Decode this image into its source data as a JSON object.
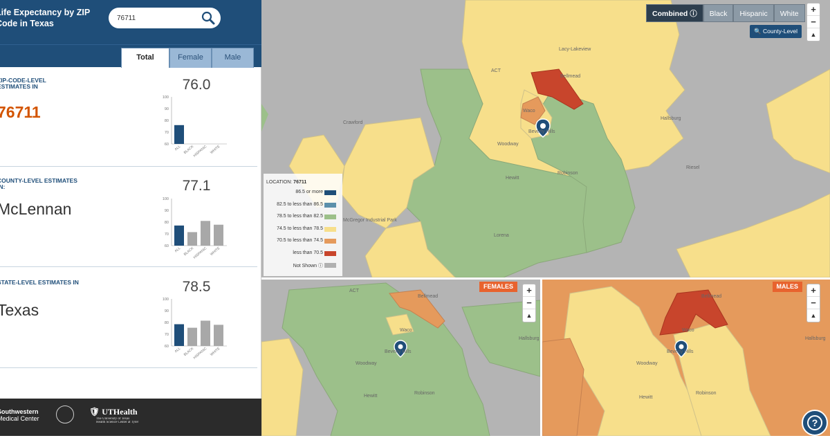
{
  "header": {
    "title": "Life Expectancy by ZIP Code in Texas",
    "search_value": "76711"
  },
  "tabs": [
    {
      "label": "Total"
    },
    {
      "label": "Female"
    },
    {
      "label": "Male"
    }
  ],
  "sections": [
    {
      "label": "ZIP-Code-Level Estimates in",
      "name": "76711",
      "value": "76.0",
      "chart_data": {
        "type": "bar",
        "categories": [
          "ALL",
          "BLACK",
          "HISPANIC",
          "WHITE"
        ],
        "values": [
          76.0,
          null,
          null,
          null
        ],
        "ylim": [
          60,
          100
        ],
        "yticks": [
          60,
          70,
          80,
          90,
          100
        ]
      }
    },
    {
      "label": "County-Level Estimates in:",
      "name": "McLennan",
      "value": "77.1",
      "chart_data": {
        "type": "bar",
        "categories": [
          "ALL",
          "BLACK",
          "HISPANIC",
          "WHITE"
        ],
        "values": [
          77.1,
          71.5,
          81.0,
          77.8
        ],
        "ylim": [
          60,
          100
        ],
        "yticks": [
          60,
          70,
          80,
          90,
          100
        ]
      }
    },
    {
      "label": "State-Level Estimates in",
      "name": "Texas",
      "value": "78.5",
      "chart_data": {
        "type": "bar",
        "categories": [
          "ALL",
          "BLACK",
          "HISPANIC",
          "WHITE"
        ],
        "values": [
          78.5,
          75.5,
          81.5,
          78.0
        ],
        "ylim": [
          60,
          100
        ],
        "yticks": [
          60,
          70,
          80,
          90,
          100
        ]
      }
    }
  ],
  "footer": {
    "utsw_line1": "Southwestern",
    "utsw_line2": "Medical Center",
    "uthealth": "UTHealth",
    "uthealth_sub1": "The University of Texas",
    "uthealth_sub2": "Health Science Center at Tyler"
  },
  "race_buttons": [
    {
      "label": "Combined",
      "selected": true
    },
    {
      "label": "Black"
    },
    {
      "label": "Hispanic"
    },
    {
      "label": "White"
    }
  ],
  "county_level_button": "County-Level",
  "legend": {
    "location_label": "LOCATION:",
    "location_value": "76711",
    "items": [
      {
        "label": "86.5 or more",
        "color": "#1f4e79"
      },
      {
        "label": "82.5 to less than 86.5",
        "color": "#5b8fab"
      },
      {
        "label": "78.5 to less than 82.5",
        "color": "#9cc08a"
      },
      {
        "label": "74.5 to less than 78.5",
        "color": "#f7df8b"
      },
      {
        "label": "70.5 to less than 74.5",
        "color": "#e59a5c"
      },
      {
        "label": "less than 70.5",
        "color": "#c8452c"
      },
      {
        "label": "Not Shown",
        "color": "#b0b0b0"
      }
    ]
  },
  "map_places": {
    "lacy": "Lacy-Lakeview",
    "act": "ACT",
    "hallmead": "Bellmead",
    "waco": "Waco",
    "hallsburg": "Hallsburg",
    "crawford": "Crawford",
    "woodway": "Woodway",
    "beverly": "Beverly Hills",
    "hewitt": "Hewitt",
    "robinson": "Robinson",
    "riesel": "Riesel",
    "mcgregor": "McGregor Industrial Park",
    "lorena": "Lorena"
  },
  "female_badge": "FEMALES",
  "male_badge": "MALES",
  "colors": {
    "header": "#1f4e79",
    "green": "#9cc08a",
    "yellow": "#f7df8b",
    "orange": "#e59a5c",
    "red": "#c8452c",
    "grey": "#b0b0b0"
  }
}
